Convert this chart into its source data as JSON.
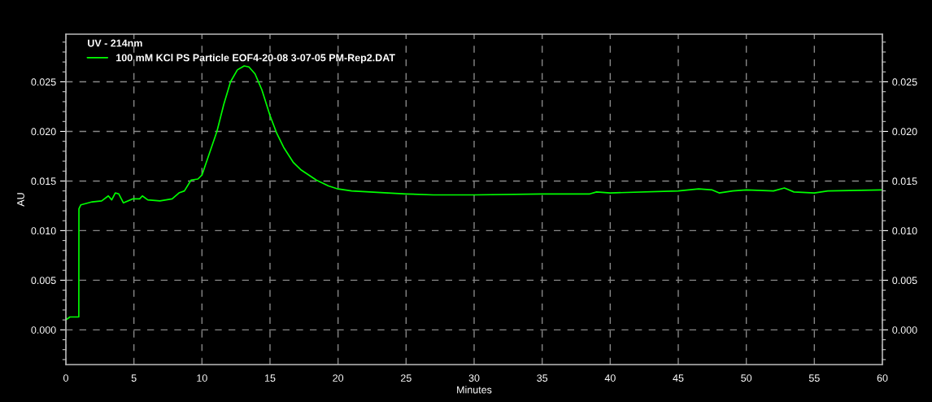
{
  "chart_data": {
    "type": "line",
    "xlabel": "Minutes",
    "ylabel": "AU",
    "legend_title": "UV - 214nm",
    "series": [
      {
        "name": "100 mM KCl PS Particle EOF4-20-08 3-07-05 PM-Rep2.DAT",
        "color": "#00ff00",
        "x": [
          0.0,
          0.3,
          0.95,
          0.96,
          1.1,
          1.93,
          2.63,
          3.12,
          3.37,
          3.63,
          3.89,
          4.23,
          4.92,
          5.42,
          5.62,
          6.02,
          6.91,
          7.81,
          8.31,
          8.71,
          9.2,
          9.7,
          10.0,
          10.5,
          11.1,
          11.6,
          12.1,
          12.6,
          13.1,
          13.45,
          13.9,
          14.4,
          15.0,
          15.5,
          16.0,
          16.7,
          17.3,
          18.4,
          19.3,
          20.0,
          21.0,
          25.0,
          27.0,
          30.0,
          35.0,
          37.0,
          38.5,
          39.0,
          40.0,
          45.0,
          46.5,
          47.5,
          48.0,
          49.0,
          50.0,
          52.0,
          52.8,
          53.5,
          55.0,
          56.0,
          60.0
        ],
        "values": [
          0.001,
          0.0013,
          0.0013,
          0.0122,
          0.0126,
          0.0129,
          0.013,
          0.0135,
          0.0131,
          0.0138,
          0.0137,
          0.0128,
          0.0132,
          0.0132,
          0.0135,
          0.0131,
          0.013,
          0.0132,
          0.0138,
          0.014,
          0.0151,
          0.0152,
          0.0156,
          0.0176,
          0.02,
          0.0227,
          0.025,
          0.0262,
          0.0266,
          0.0265,
          0.0258,
          0.0242,
          0.0216,
          0.0198,
          0.0184,
          0.0169,
          0.0161,
          0.0151,
          0.0145,
          0.0142,
          0.014,
          0.0137,
          0.0136,
          0.0136,
          0.0137,
          0.0137,
          0.0137,
          0.0139,
          0.0138,
          0.014,
          0.0142,
          0.0141,
          0.0138,
          0.014,
          0.0141,
          0.014,
          0.0143,
          0.0139,
          0.0138,
          0.014,
          0.0141
        ]
      }
    ],
    "xlim": [
      0,
      60
    ],
    "xticks": [
      0,
      5,
      10,
      15,
      20,
      25,
      30,
      35,
      40,
      45,
      50,
      55,
      60
    ],
    "ylim": [
      -0.0035,
      0.0298
    ],
    "yticks": [
      {
        "value": 0,
        "label": "0.000"
      },
      {
        "value": 0.005,
        "label": "0.005"
      },
      {
        "value": 0.01,
        "label": "0.010"
      },
      {
        "value": 0.015,
        "label": "0.015"
      },
      {
        "value": 0.02,
        "label": "0.020"
      },
      {
        "value": 0.025,
        "label": "0.025"
      }
    ],
    "y2lim": [
      -0.0035,
      0.0298
    ],
    "y2ticks": [
      {
        "value": 0,
        "label": "0.000"
      },
      {
        "value": 0.005,
        "label": "0.005"
      },
      {
        "value": 0.01,
        "label": "0.010"
      },
      {
        "value": 0.015,
        "label": "0.015"
      },
      {
        "value": 0.02,
        "label": "0.020"
      },
      {
        "value": 0.025,
        "label": "0.025"
      }
    ],
    "grid": true,
    "legend": "top left",
    "line_style": "solid",
    "marker": "none"
  }
}
